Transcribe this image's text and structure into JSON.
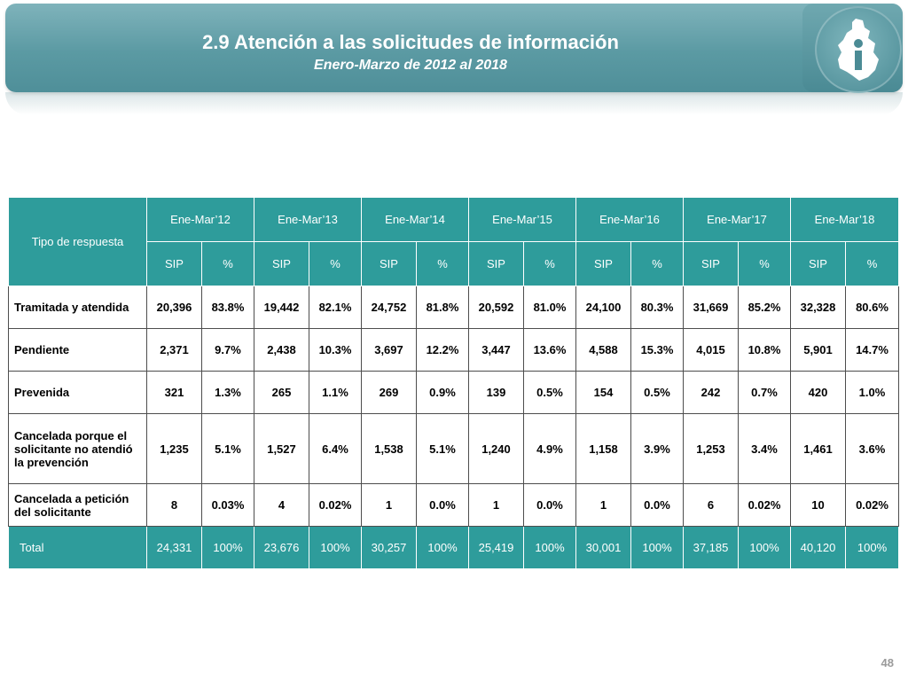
{
  "header": {
    "title": "2.9 Atención a las solicitudes de información",
    "subtitle": "Enero-Marzo de 2012 al 2018"
  },
  "logo": {
    "icon": "cdmx-map-info-icon"
  },
  "table": {
    "row_header": "Tipo de respuesta",
    "periods": [
      "Ene-Mar’12",
      "Ene-Mar’13",
      "Ene-Mar’14",
      "Ene-Mar’15",
      "Ene-Mar’16",
      "Ene-Mar’17",
      "Ene-Mar’18"
    ],
    "subheaders": {
      "sip": "SIP",
      "pct": "%"
    },
    "rows": [
      {
        "label": "Tramitada y atendida",
        "values": [
          "20,396",
          "83.8%",
          "19,442",
          "82.1%",
          "24,752",
          "81.8%",
          "20,592",
          "81.0%",
          "24,100",
          "80.3%",
          "31,669",
          "85.2%",
          "32,328",
          "80.6%"
        ]
      },
      {
        "label": "Pendiente",
        "values": [
          "2,371",
          "9.7%",
          "2,438",
          "10.3%",
          "3,697",
          "12.2%",
          "3,447",
          "13.6%",
          "4,588",
          "15.3%",
          "4,015",
          "10.8%",
          "5,901",
          "14.7%"
        ]
      },
      {
        "label": "Prevenida",
        "values": [
          "321",
          "1.3%",
          "265",
          "1.1%",
          "269",
          "0.9%",
          "139",
          "0.5%",
          "154",
          "0.5%",
          "242",
          "0.7%",
          "420",
          "1.0%"
        ]
      },
      {
        "label": "Cancelada porque el solicitante no atendió la prevención",
        "values": [
          "1,235",
          "5.1%",
          "1,527",
          "6.4%",
          "1,538",
          "5.1%",
          "1,240",
          "4.9%",
          "1,158",
          "3.9%",
          "1,253",
          "3.4%",
          "1,461",
          "3.6%"
        ]
      },
      {
        "label": "Cancelada a petición del solicitante",
        "values": [
          "8",
          "0.03%",
          "4",
          "0.02%",
          "1",
          "0.0%",
          "1",
          "0.0%",
          "1",
          "0.0%",
          "6",
          "0.02%",
          "10",
          "0.02%"
        ]
      }
    ],
    "total": {
      "label": "Total",
      "values": [
        "24,331",
        "100%",
        "23,676",
        "100%",
        "30,257",
        "100%",
        "25,419",
        "100%",
        "30,001",
        "100%",
        "37,185",
        "100%",
        "40,120",
        "100%"
      ]
    }
  },
  "footer": {
    "page_number": "48"
  },
  "colors": {
    "header_teal": "#2e9c9b",
    "banner_teal": "#5b9aa3",
    "text_white": "#ffffff"
  }
}
